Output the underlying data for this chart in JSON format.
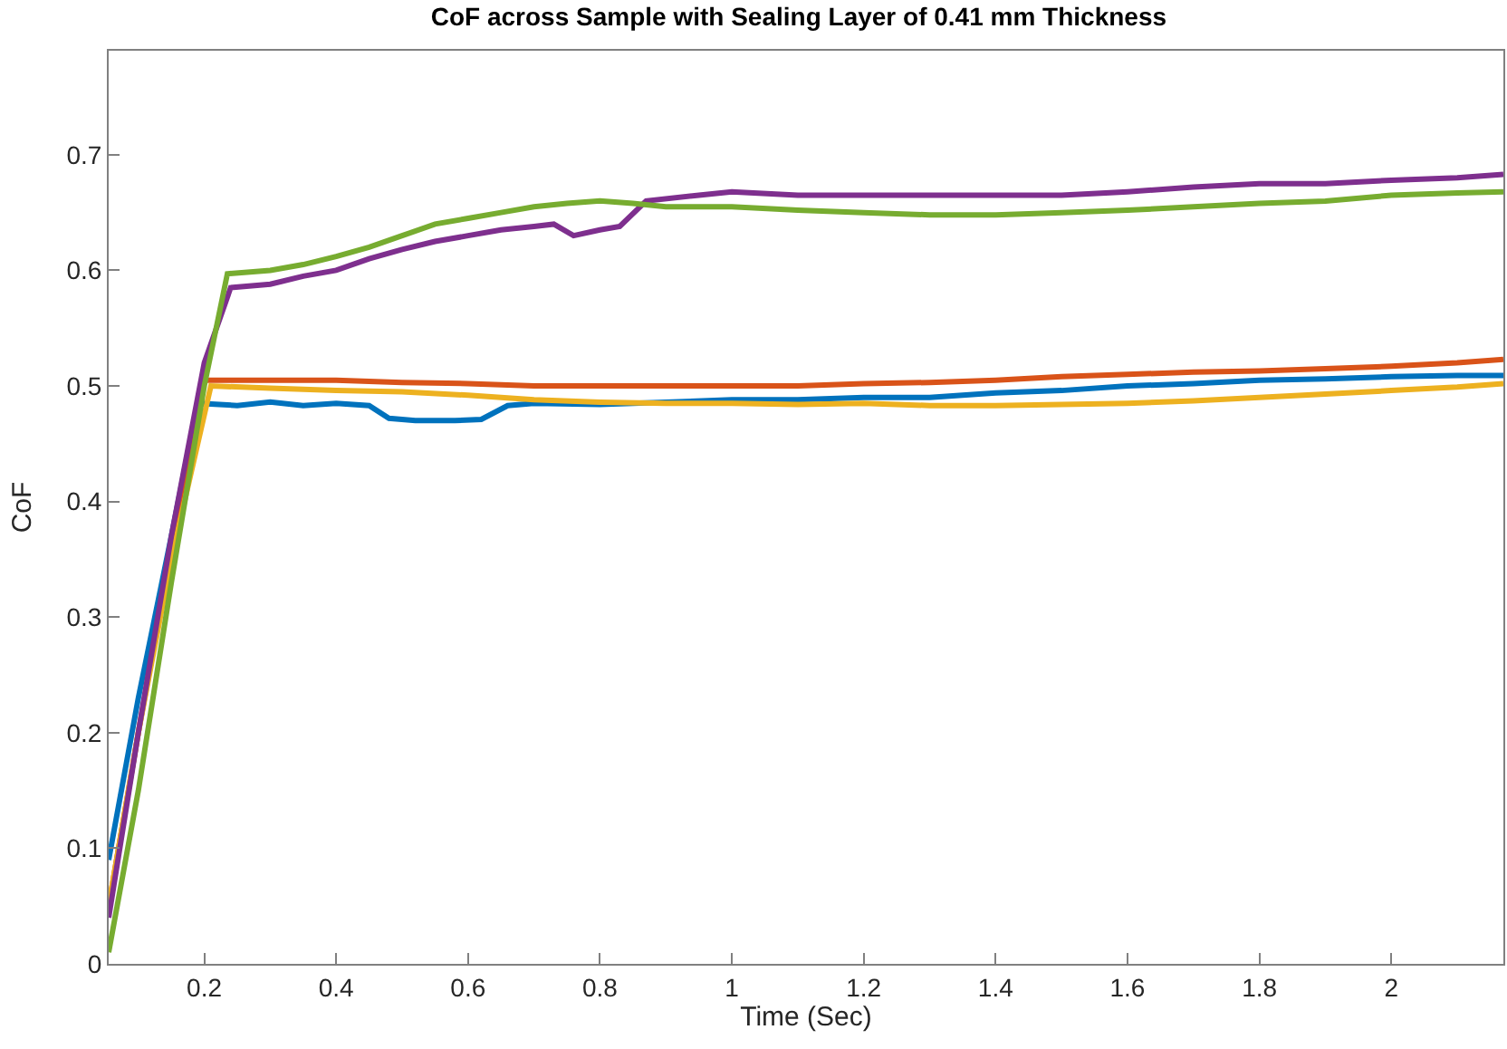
{
  "chart_data": {
    "type": "line",
    "title": "CoF across Sample with Sealing Layer of 0.41 mm Thickness",
    "xlabel": "Time (Sec)",
    "ylabel": "CoF",
    "xlim": [
      0.055,
      2.17
    ],
    "ylim": [
      0,
      0.79
    ],
    "xticks": [
      0.2,
      0.4,
      0.6,
      0.8,
      1,
      1.2,
      1.4,
      1.6,
      1.8,
      2
    ],
    "yticks": [
      0,
      0.1,
      0.2,
      0.3,
      0.4,
      0.5,
      0.6,
      0.7
    ],
    "marker": "none",
    "line_style": "solid",
    "series": [
      {
        "color": "#0072bd",
        "x": [
          0.055,
          0.1,
          0.15,
          0.19,
          0.25,
          0.3,
          0.35,
          0.4,
          0.45,
          0.48,
          0.52,
          0.58,
          0.62,
          0.66,
          0.7,
          0.8,
          0.9,
          1.0,
          1.1,
          1.2,
          1.3,
          1.4,
          1.5,
          1.6,
          1.7,
          1.8,
          1.9,
          2.0,
          2.1,
          2.17
        ],
        "values": [
          0.09,
          0.23,
          0.37,
          0.485,
          0.483,
          0.486,
          0.483,
          0.485,
          0.483,
          0.472,
          0.47,
          0.47,
          0.471,
          0.483,
          0.485,
          0.484,
          0.486,
          0.488,
          0.488,
          0.49,
          0.49,
          0.494,
          0.496,
          0.5,
          0.502,
          0.505,
          0.506,
          0.508,
          0.509,
          0.509
        ]
      },
      {
        "color": "#d95319",
        "x": [
          0.055,
          0.1,
          0.15,
          0.2,
          0.3,
          0.4,
          0.5,
          0.6,
          0.7,
          0.8,
          0.9,
          1.0,
          1.1,
          1.2,
          1.3,
          1.4,
          1.5,
          1.6,
          1.7,
          1.8,
          1.9,
          2.0,
          2.1,
          2.17
        ],
        "values": [
          0.05,
          0.2,
          0.36,
          0.505,
          0.505,
          0.505,
          0.503,
          0.502,
          0.5,
          0.5,
          0.5,
          0.5,
          0.5,
          0.502,
          0.503,
          0.505,
          0.508,
          0.51,
          0.512,
          0.513,
          0.515,
          0.517,
          0.52,
          0.523
        ]
      },
      {
        "color": "#edb120",
        "x": [
          0.055,
          0.1,
          0.15,
          0.21,
          0.3,
          0.4,
          0.5,
          0.6,
          0.7,
          0.8,
          0.9,
          1.0,
          1.1,
          1.2,
          1.3,
          1.4,
          1.5,
          1.6,
          1.7,
          1.8,
          1.9,
          2.0,
          2.1,
          2.17
        ],
        "values": [
          0.05,
          0.2,
          0.35,
          0.5,
          0.498,
          0.496,
          0.495,
          0.492,
          0.488,
          0.486,
          0.485,
          0.485,
          0.484,
          0.485,
          0.483,
          0.483,
          0.484,
          0.485,
          0.487,
          0.49,
          0.493,
          0.496,
          0.499,
          0.502
        ]
      },
      {
        "color": "#7e2f8e",
        "x": [
          0.055,
          0.1,
          0.15,
          0.2,
          0.24,
          0.3,
          0.35,
          0.4,
          0.45,
          0.5,
          0.55,
          0.6,
          0.65,
          0.7,
          0.73,
          0.76,
          0.8,
          0.83,
          0.87,
          0.95,
          1.0,
          1.1,
          1.2,
          1.3,
          1.4,
          1.5,
          1.6,
          1.7,
          1.8,
          1.9,
          2.0,
          2.1,
          2.17
        ],
        "values": [
          0.04,
          0.2,
          0.37,
          0.52,
          0.585,
          0.588,
          0.595,
          0.6,
          0.61,
          0.618,
          0.625,
          0.63,
          0.635,
          0.638,
          0.64,
          0.63,
          0.635,
          0.638,
          0.66,
          0.665,
          0.668,
          0.665,
          0.665,
          0.665,
          0.665,
          0.665,
          0.668,
          0.672,
          0.675,
          0.675,
          0.678,
          0.68,
          0.683
        ]
      },
      {
        "color": "#77ac30",
        "x": [
          0.055,
          0.1,
          0.15,
          0.2,
          0.235,
          0.3,
          0.35,
          0.4,
          0.45,
          0.5,
          0.55,
          0.6,
          0.65,
          0.7,
          0.75,
          0.8,
          0.85,
          0.9,
          1.0,
          1.1,
          1.2,
          1.3,
          1.4,
          1.5,
          1.6,
          1.7,
          1.8,
          1.9,
          2.0,
          2.1,
          2.17
        ],
        "values": [
          0.01,
          0.15,
          0.33,
          0.5,
          0.597,
          0.6,
          0.605,
          0.612,
          0.62,
          0.63,
          0.64,
          0.645,
          0.65,
          0.655,
          0.658,
          0.66,
          0.658,
          0.655,
          0.655,
          0.652,
          0.65,
          0.648,
          0.648,
          0.65,
          0.652,
          0.655,
          0.658,
          0.66,
          0.665,
          0.667,
          0.668
        ]
      }
    ]
  }
}
